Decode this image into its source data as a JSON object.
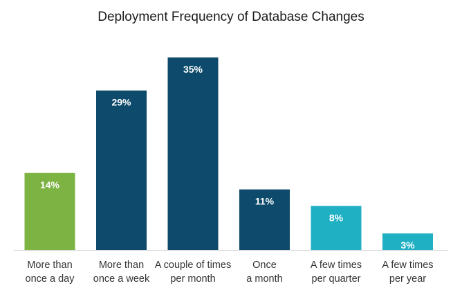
{
  "chart_data": {
    "type": "bar",
    "title": "Deployment Frequency of Database Changes",
    "categories": [
      [
        "More than",
        "once a day"
      ],
      [
        "More than",
        "once a week"
      ],
      [
        "A couple of times",
        "per month"
      ],
      [
        "Once",
        "a month"
      ],
      [
        "A few times",
        "per quarter"
      ],
      [
        "A few times",
        "per year"
      ]
    ],
    "values": [
      14,
      29,
      35,
      11,
      8,
      3
    ],
    "value_labels": [
      "14%",
      "29%",
      "35%",
      "11%",
      "8%",
      "3%"
    ],
    "bar_colors": [
      "#7cb342",
      "#0d4a6b",
      "#0d4a6b",
      "#0d4a6b",
      "#1fb0c4",
      "#1fb0c4"
    ],
    "unit": "%",
    "ylim": [
      0,
      35
    ],
    "grid": false,
    "legend": "none"
  }
}
